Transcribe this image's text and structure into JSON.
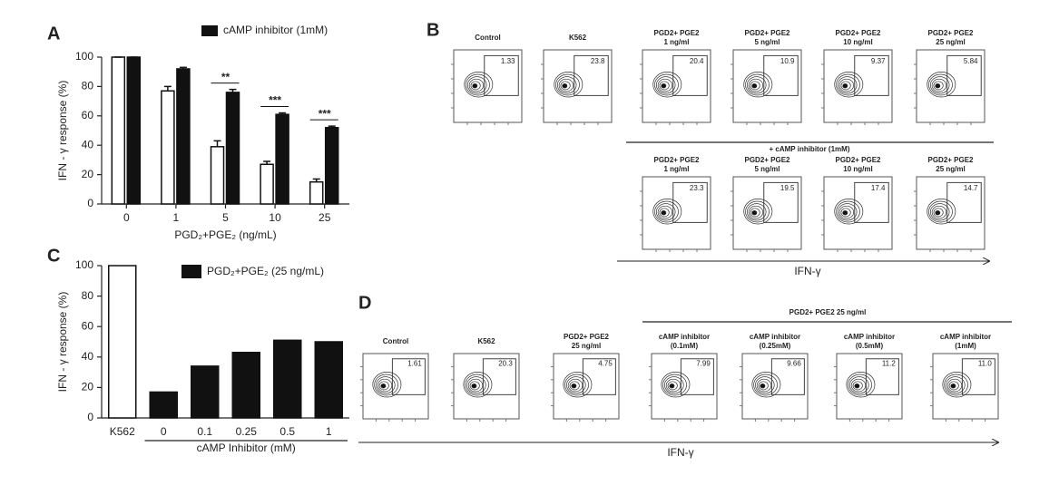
{
  "chart_data": [
    {
      "type": "bar",
      "panel_label": "A",
      "categories": [
        "0",
        "1",
        "5",
        "10",
        "25"
      ],
      "series": [
        {
          "color": "#ffffff",
          "values": [
            100,
            77,
            39,
            27,
            15
          ],
          "errors": [
            0,
            3,
            4,
            2,
            2
          ]
        },
        {
          "name": "cAMP inhibitor (1mM)",
          "color": "#111111",
          "values": [
            100,
            92,
            76,
            61,
            52
          ],
          "errors": [
            0,
            1,
            2,
            1,
            1
          ]
        }
      ],
      "annotations": [
        null,
        null,
        "**",
        "***",
        "***"
      ],
      "ylim": [
        0,
        100
      ],
      "yticks": [
        0,
        20,
        40,
        60,
        80,
        100
      ],
      "y_label": "IFN - γ response (%)",
      "x_label": "PGD₂+PGE₂ (ng/mL)"
    },
    {
      "type": "bar",
      "panel_label": "C",
      "categories": [
        "K562",
        "0",
        "0.1",
        "0.25",
        "0.5",
        "1"
      ],
      "values": [
        100,
        17,
        34,
        43,
        51,
        50
      ],
      "colors": [
        "#ffffff",
        "#111111",
        "#111111",
        "#111111",
        "#111111",
        "#111111"
      ],
      "legend_label": "PGD₂+PGE₂ (25 ng/mL)",
      "x_group_label": "cAMP Inhibitor (mM)",
      "ylim": [
        0,
        100
      ],
      "yticks": [
        0,
        20,
        40,
        60,
        80,
        100
      ],
      "y_label": "IFN - γ response (%)"
    }
  ],
  "flow_panels": [
    {
      "panel_label": "B",
      "divider_label": "+ cAMP inhibitor (1mM)",
      "x_label": "IFN-γ",
      "rows": [
        [
          {
            "title": [
              "Control"
            ],
            "gate": "1.33"
          },
          {
            "title": [
              "K562"
            ],
            "gate": "23.8"
          },
          {
            "title": [
              "PGD2+ PGE2",
              "1 ng/ml"
            ],
            "gate": "20.4"
          },
          {
            "title": [
              "PGD2+ PGE2",
              "5 ng/ml"
            ],
            "gate": "10.9"
          },
          {
            "title": [
              "PGD2+ PGE2",
              "10 ng/ml"
            ],
            "gate": "9.37"
          },
          {
            "title": [
              "PGD2+ PGE2",
              "25 ng/ml"
            ],
            "gate": "5.84"
          }
        ],
        [
          {
            "title": [
              "PGD2+ PGE2",
              "1 ng/ml"
            ],
            "gate": "23.3"
          },
          {
            "title": [
              "PGD2+ PGE2",
              "5 ng/ml"
            ],
            "gate": "19.5"
          },
          {
            "title": [
              "PGD2+ PGE2",
              "10 ng/ml"
            ],
            "gate": "17.4"
          },
          {
            "title": [
              "PGD2+ PGE2",
              "25 ng/ml"
            ],
            "gate": "14.7"
          }
        ]
      ]
    },
    {
      "panel_label": "D",
      "group_label": "PGD2+ PGE2  25 ng/ml",
      "x_label": "IFN-γ",
      "rows": [
        [
          {
            "title": [
              "Control"
            ],
            "gate": "1.61"
          },
          {
            "title": [
              "K562"
            ],
            "gate": "20.3"
          },
          {
            "title": [
              "PGD2+ PGE2",
              "25 ng/ml"
            ],
            "gate": "4.75"
          },
          {
            "title": [
              "cAMP inhibitor",
              "(0.1mM)"
            ],
            "gate": "7.99"
          },
          {
            "title": [
              "cAMP inhibitor",
              "(0.25mM)"
            ],
            "gate": "9.66"
          },
          {
            "title": [
              "cAMP inhibitor",
              "(0.5mM)"
            ],
            "gate": "11.2"
          },
          {
            "title": [
              "cAMP inhibitor",
              "(1mM)"
            ],
            "gate": "11.0"
          }
        ]
      ]
    }
  ]
}
